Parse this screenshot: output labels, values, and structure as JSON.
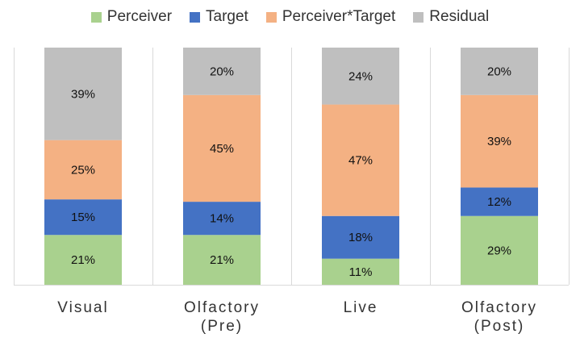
{
  "chart_data": {
    "type": "bar",
    "stacked": true,
    "orientation": "vertical",
    "categories": [
      [
        "Visual"
      ],
      [
        "Olfactory",
        "(Pre)"
      ],
      [
        "Live"
      ],
      [
        "Olfactory",
        "(Post)"
      ]
    ],
    "series": [
      {
        "name": "Perceiver",
        "color": "#a9d18e",
        "values": [
          21,
          21,
          11,
          29
        ],
        "labels": [
          "21%",
          "21%",
          "11%",
          "29%"
        ]
      },
      {
        "name": "Target",
        "color": "#4472c4",
        "values": [
          15,
          14,
          18,
          12
        ],
        "labels": [
          "15%",
          "14%",
          "18%",
          "12%"
        ]
      },
      {
        "name": "Perceiver*Target",
        "color": "#f4b183",
        "values": [
          25,
          45,
          47,
          39
        ],
        "labels": [
          "25%",
          "45%",
          "47%",
          "39%"
        ]
      },
      {
        "name": "Residual",
        "color": "#bfbfbf",
        "values": [
          39,
          20,
          24,
          20
        ],
        "labels": [
          "39%",
          "20%",
          "24%",
          "20%"
        ]
      }
    ],
    "ylim": [
      0,
      100
    ],
    "legend": "top",
    "grid": true
  }
}
